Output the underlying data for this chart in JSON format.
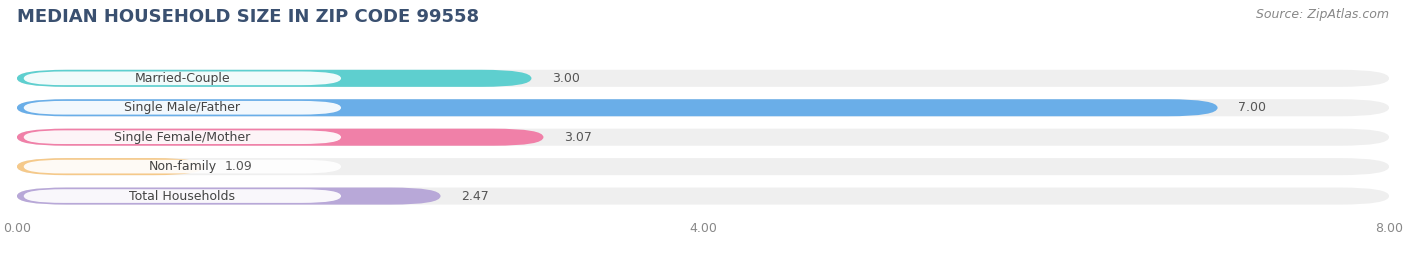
{
  "title": "MEDIAN HOUSEHOLD SIZE IN ZIP CODE 99558",
  "source": "Source: ZipAtlas.com",
  "categories": [
    "Married-Couple",
    "Single Male/Father",
    "Single Female/Mother",
    "Non-family",
    "Total Households"
  ],
  "values": [
    3.0,
    7.0,
    3.07,
    1.09,
    2.47
  ],
  "bar_colors": [
    "#5ecfcf",
    "#6aaee8",
    "#f080a8",
    "#f5c98a",
    "#b8a8d8"
  ],
  "xlim": [
    0,
    8.0
  ],
  "xticks": [
    0.0,
    4.0,
    8.0
  ],
  "xtick_labels": [
    "0.00",
    "4.00",
    "8.00"
  ],
  "background_color": "#ffffff",
  "bar_bg_color": "#efefef",
  "title_fontsize": 13,
  "source_fontsize": 9,
  "label_fontsize": 9,
  "value_fontsize": 9
}
